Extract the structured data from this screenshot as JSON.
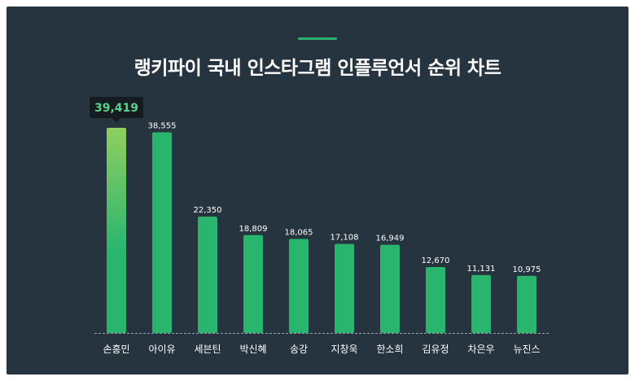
{
  "colors": {
    "background": "#26343f",
    "bar": "#2ab56f",
    "bar_highlight_top": "#8fcf5f",
    "accent": "#2ab56f",
    "tooltip_bg": "#141b21",
    "tooltip_text": "#5fd08a",
    "baseline": "#9aa3aa"
  },
  "chart_data": {
    "type": "bar",
    "title": "랭키파이 국내 인스타그램 인플루언서 순위 차트",
    "categories": [
      "손흥민",
      "아이유",
      "세븐틴",
      "박신혜",
      "송강",
      "지창욱",
      "한소희",
      "김유정",
      "차은우",
      "뉴진스"
    ],
    "values": [
      39419,
      38555,
      22350,
      18809,
      18065,
      17108,
      16949,
      12670,
      11131,
      10975
    ],
    "value_labels": [
      "39,419",
      "38,555",
      "22,350",
      "18,809",
      "18,065",
      "17,108",
      "16,949",
      "12,670",
      "11,131",
      "10,975"
    ],
    "highlight_index": 0,
    "ylim": [
      0,
      39419
    ],
    "grid": false,
    "legend": "none"
  }
}
